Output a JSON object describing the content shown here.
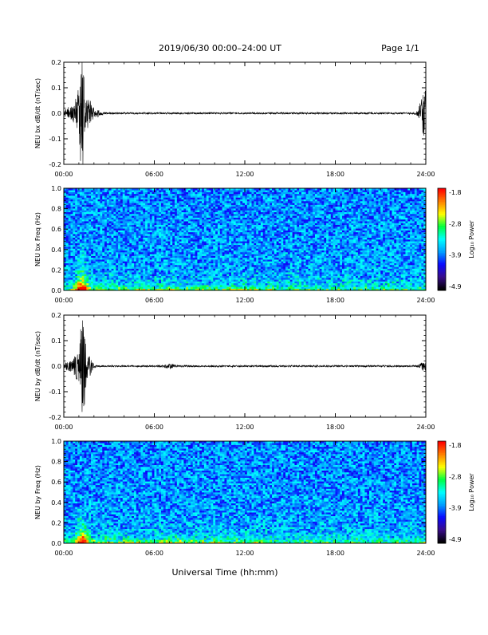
{
  "header": {
    "title": "2019/06/30  00:00–24:00 UT",
    "page": "Page 1/1"
  },
  "x_axis_label": "Universal Time (hh:mm)",
  "time_ticks": [
    "00:00",
    "06:00",
    "12:00",
    "18:00",
    "24:00"
  ],
  "colorbar": {
    "label": "Log₁₀ Power",
    "ticks": [
      "-1.8",
      "-2.8",
      "-3.9",
      "-4.9"
    ],
    "colors": [
      "#000000",
      "#3a0c8c",
      "#0a0aff",
      "#00a0ff",
      "#00ffff",
      "#00ff40",
      "#ffff00",
      "#ff8000",
      "#ff0000"
    ]
  },
  "chart_data": [
    {
      "type": "line",
      "id": "bx-waveform",
      "ylabel": "NEU bx dB/dt (nT/sec)",
      "ylim": [
        -0.2,
        0.2
      ],
      "yticks": [
        "-0.2",
        "-0.1",
        "0.0",
        "0.1",
        "0.2"
      ],
      "xlim_hours": [
        0,
        24
      ],
      "baseline": 0.0,
      "events": [
        {
          "t": 0.3,
          "amp": 0.02
        },
        {
          "t": 0.9,
          "amp": 0.06
        },
        {
          "t": 1.2,
          "amp": 0.2
        },
        {
          "t": 1.6,
          "amp": 0.06
        },
        {
          "t": 2.2,
          "amp": 0.012
        },
        {
          "t": 23.9,
          "amp": 0.09
        }
      ],
      "color": "#000000"
    },
    {
      "type": "heatmap",
      "id": "bx-spectrogram",
      "ylabel": "NEU bx Freq (Hz)",
      "ylim": [
        0,
        1.0
      ],
      "yticks": [
        "0.0",
        "0.2",
        "0.4",
        "0.6",
        "0.8",
        "1.0"
      ],
      "xlim_hours": [
        0,
        24
      ],
      "power_range": [
        -4.9,
        -1.8
      ],
      "peak_hours": 1.2,
      "peak_power": -1.8
    },
    {
      "type": "line",
      "id": "by-waveform",
      "ylabel": "NEU by dB/dt (nT/sec)",
      "ylim": [
        -0.2,
        0.2
      ],
      "yticks": [
        "-0.2",
        "-0.1",
        "0.0",
        "0.1",
        "0.2"
      ],
      "xlim_hours": [
        0,
        24
      ],
      "baseline": 0.0,
      "events": [
        {
          "t": 0.3,
          "amp": 0.015
        },
        {
          "t": 0.9,
          "amp": 0.05
        },
        {
          "t": 1.25,
          "amp": 0.19
        },
        {
          "t": 1.6,
          "amp": 0.05
        },
        {
          "t": 7.0,
          "amp": 0.008
        },
        {
          "t": 23.9,
          "amp": 0.015
        }
      ],
      "color": "#000000"
    },
    {
      "type": "heatmap",
      "id": "by-spectrogram",
      "ylabel": "NEU by Freq (Hz)",
      "ylim": [
        0,
        1.0
      ],
      "yticks": [
        "0.0",
        "0.2",
        "0.4",
        "0.6",
        "0.8",
        "1.0"
      ],
      "xlim_hours": [
        0,
        24
      ],
      "power_range": [
        -4.9,
        -1.8
      ],
      "peak_hours": 1.2,
      "peak_power": -2.0
    }
  ]
}
